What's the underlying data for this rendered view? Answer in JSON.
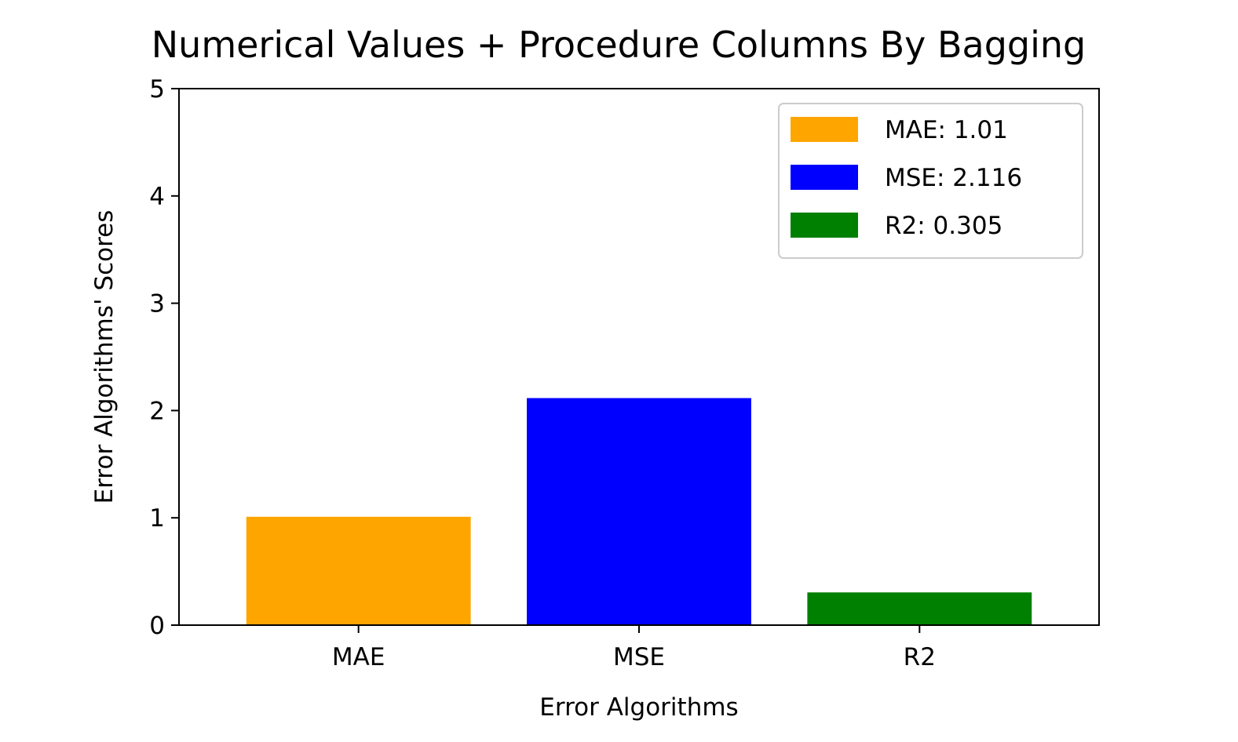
{
  "chart_data": {
    "type": "bar",
    "title": "Numerical Values + Procedure Columns By Bagging",
    "xlabel": "Error Algorithms",
    "ylabel": "Error Algorithms' Scores",
    "categories": [
      "MAE",
      "MSE",
      "R2"
    ],
    "values": [
      1.01,
      2.116,
      0.305
    ],
    "colors": [
      "#ffa500",
      "#0000ff",
      "#008000"
    ],
    "ylim": [
      0,
      5
    ],
    "yticks": [
      0,
      1,
      2,
      3,
      4,
      5
    ],
    "grid": false,
    "legend": {
      "placement": "top-right",
      "entries": [
        "MAE: 1.01",
        "MSE: 2.116",
        "R2: 0.305"
      ]
    }
  }
}
